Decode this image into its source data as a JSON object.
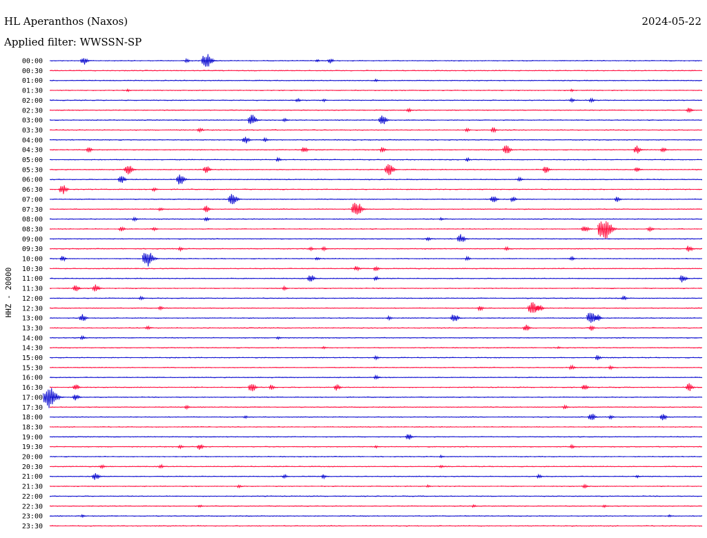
{
  "header": {
    "station": "HL Aperanthos (Naxos)",
    "date": "2024-05-22",
    "filter": "Applied filter: WWSSN-SP"
  },
  "chart_data": {
    "type": "line",
    "title": "HL Aperanthos (Naxos)",
    "ylabel": "HHZ - 20000",
    "colors": [
      "#1010d0",
      "#ff1040"
    ],
    "rows": [
      {
        "label": "00:00",
        "events": [
          [
            0.052,
            6
          ],
          [
            0.21,
            3
          ],
          [
            0.24,
            11
          ],
          [
            0.43,
            4
          ],
          [
            0.41,
            2
          ]
        ]
      },
      {
        "label": "00:30",
        "events": []
      },
      {
        "label": "01:00",
        "events": [
          [
            0.5,
            2
          ]
        ]
      },
      {
        "label": "01:30",
        "events": [
          [
            0.12,
            2
          ],
          [
            0.8,
            2
          ]
        ]
      },
      {
        "label": "02:00",
        "events": [
          [
            0.38,
            3
          ],
          [
            0.42,
            2
          ],
          [
            0.8,
            3
          ],
          [
            0.83,
            3
          ]
        ]
      },
      {
        "label": "02:30",
        "events": [
          [
            0.55,
            3
          ],
          [
            0.98,
            4
          ]
        ]
      },
      {
        "label": "03:00",
        "events": [
          [
            0.31,
            8
          ],
          [
            0.51,
            8
          ],
          [
            0.36,
            3
          ]
        ]
      },
      {
        "label": "03:30",
        "events": [
          [
            0.23,
            4
          ],
          [
            0.64,
            3
          ],
          [
            0.68,
            4
          ]
        ]
      },
      {
        "label": "04:00",
        "events": [
          [
            0.3,
            6
          ],
          [
            0.33,
            3
          ]
        ]
      },
      {
        "label": "04:30",
        "events": [
          [
            0.06,
            4
          ],
          [
            0.39,
            5
          ],
          [
            0.51,
            4
          ],
          [
            0.7,
            7
          ],
          [
            0.9,
            6
          ],
          [
            0.94,
            4
          ]
        ]
      },
      {
        "label": "05:00",
        "events": [
          [
            0.35,
            3
          ],
          [
            0.64,
            3
          ]
        ]
      },
      {
        "label": "05:30",
        "events": [
          [
            0.12,
            8
          ],
          [
            0.24,
            6
          ],
          [
            0.52,
            9
          ],
          [
            0.76,
            5
          ],
          [
            0.9,
            4
          ]
        ]
      },
      {
        "label": "06:00",
        "events": [
          [
            0.11,
            6
          ],
          [
            0.2,
            8
          ],
          [
            0.72,
            3
          ]
        ]
      },
      {
        "label": "06:30",
        "events": [
          [
            0.02,
            7
          ],
          [
            0.16,
            3
          ]
        ]
      },
      {
        "label": "07:00",
        "events": [
          [
            0.28,
            9
          ],
          [
            0.68,
            6
          ],
          [
            0.71,
            4
          ],
          [
            0.87,
            4
          ]
        ]
      },
      {
        "label": "07:30",
        "events": [
          [
            0.17,
            3
          ],
          [
            0.24,
            5
          ],
          [
            0.47,
            11
          ]
        ]
      },
      {
        "label": "08:00",
        "events": [
          [
            0.13,
            3
          ],
          [
            0.24,
            3
          ],
          [
            0.6,
            2
          ]
        ]
      },
      {
        "label": "08:30",
        "events": [
          [
            0.11,
            4
          ],
          [
            0.16,
            3
          ],
          [
            0.82,
            6
          ],
          [
            0.85,
            16
          ],
          [
            0.92,
            4
          ]
        ]
      },
      {
        "label": "09:00",
        "events": [
          [
            0.58,
            3
          ],
          [
            0.63,
            7
          ]
        ]
      },
      {
        "label": "09:30",
        "events": [
          [
            0.2,
            3
          ],
          [
            0.4,
            3
          ],
          [
            0.42,
            3
          ],
          [
            0.7,
            3
          ],
          [
            0.98,
            5
          ]
        ]
      },
      {
        "label": "10:00",
        "events": [
          [
            0.02,
            4
          ],
          [
            0.15,
            12
          ],
          [
            0.41,
            3
          ],
          [
            0.64,
            3
          ],
          [
            0.8,
            3
          ]
        ]
      },
      {
        "label": "10:30",
        "events": [
          [
            0.47,
            4
          ],
          [
            0.5,
            4
          ]
        ]
      },
      {
        "label": "11:00",
        "events": [
          [
            0.4,
            6
          ],
          [
            0.5,
            3
          ],
          [
            0.97,
            6
          ]
        ]
      },
      {
        "label": "11:30",
        "events": [
          [
            0.04,
            5
          ],
          [
            0.07,
            6
          ],
          [
            0.36,
            3
          ]
        ]
      },
      {
        "label": "12:00",
        "events": [
          [
            0.14,
            3
          ],
          [
            0.88,
            4
          ]
        ]
      },
      {
        "label": "12:30",
        "events": [
          [
            0.17,
            3
          ],
          [
            0.66,
            4
          ],
          [
            0.74,
            10
          ],
          [
            0.75,
            6
          ]
        ]
      },
      {
        "label": "13:00",
        "events": [
          [
            0.05,
            6
          ],
          [
            0.52,
            3
          ],
          [
            0.62,
            7
          ],
          [
            0.83,
            10
          ],
          [
            0.84,
            5
          ]
        ]
      },
      {
        "label": "13:30",
        "events": [
          [
            0.15,
            3
          ],
          [
            0.73,
            5
          ],
          [
            0.83,
            4
          ]
        ]
      },
      {
        "label": "14:00",
        "events": [
          [
            0.05,
            3
          ],
          [
            0.35,
            2
          ]
        ]
      },
      {
        "label": "14:30",
        "events": [
          [
            0.42,
            2
          ],
          [
            0.78,
            2
          ]
        ]
      },
      {
        "label": "15:00",
        "events": [
          [
            0.5,
            3
          ],
          [
            0.84,
            4
          ]
        ]
      },
      {
        "label": "15:30",
        "events": [
          [
            0.8,
            4
          ],
          [
            0.86,
            3
          ]
        ]
      },
      {
        "label": "16:00",
        "events": [
          [
            0.5,
            3
          ]
        ]
      },
      {
        "label": "16:30",
        "events": [
          [
            0.04,
            5
          ],
          [
            0.31,
            7
          ],
          [
            0.34,
            4
          ],
          [
            0.44,
            5
          ],
          [
            0.82,
            5
          ],
          [
            0.98,
            6
          ]
        ]
      },
      {
        "label": "17:00",
        "events": [
          [
            0.0,
            16
          ],
          [
            0.04,
            5
          ]
        ]
      },
      {
        "label": "17:30",
        "events": [
          [
            0.21,
            3
          ],
          [
            0.79,
            3
          ]
        ]
      },
      {
        "label": "18:00",
        "events": [
          [
            0.3,
            2
          ],
          [
            0.83,
            6
          ],
          [
            0.86,
            3
          ],
          [
            0.94,
            5
          ]
        ]
      },
      {
        "label": "18:30",
        "events": []
      },
      {
        "label": "19:00",
        "events": [
          [
            0.55,
            5
          ]
        ]
      },
      {
        "label": "19:30",
        "events": [
          [
            0.2,
            3
          ],
          [
            0.23,
            5
          ],
          [
            0.5,
            2
          ],
          [
            0.8,
            3
          ]
        ]
      },
      {
        "label": "20:00",
        "events": [
          [
            0.6,
            2
          ]
        ]
      },
      {
        "label": "20:30",
        "events": [
          [
            0.08,
            3
          ],
          [
            0.17,
            3
          ],
          [
            0.6,
            2
          ]
        ]
      },
      {
        "label": "21:00",
        "events": [
          [
            0.07,
            6
          ],
          [
            0.36,
            3
          ],
          [
            0.42,
            3
          ],
          [
            0.75,
            3
          ],
          [
            0.9,
            2
          ]
        ]
      },
      {
        "label": "21:30",
        "events": [
          [
            0.29,
            2
          ],
          [
            0.58,
            2
          ],
          [
            0.82,
            3
          ]
        ]
      },
      {
        "label": "22:00",
        "events": []
      },
      {
        "label": "22:30",
        "events": [
          [
            0.23,
            2
          ],
          [
            0.65,
            2
          ],
          [
            0.85,
            2
          ]
        ]
      },
      {
        "label": "23:00",
        "events": [
          [
            0.05,
            2
          ],
          [
            0.95,
            2
          ]
        ]
      },
      {
        "label": "23:30",
        "events": []
      }
    ]
  }
}
